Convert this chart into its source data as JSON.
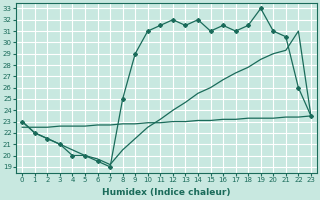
{
  "xlabel": "Humidex (Indice chaleur)",
  "xlim": [
    -0.5,
    23.5
  ],
  "ylim": [
    18.5,
    33.5
  ],
  "xticks": [
    0,
    1,
    2,
    3,
    4,
    5,
    6,
    7,
    8,
    9,
    10,
    11,
    12,
    13,
    14,
    15,
    16,
    17,
    18,
    19,
    20,
    21,
    22,
    23
  ],
  "yticks": [
    19,
    20,
    21,
    22,
    23,
    24,
    25,
    26,
    27,
    28,
    29,
    30,
    31,
    32,
    33
  ],
  "bg_color": "#c8e8e0",
  "grid_color": "#ffffff",
  "line_color": "#1a6b5a",
  "line1_x": [
    0,
    1,
    2,
    3,
    4,
    5,
    6,
    7,
    8,
    9,
    10,
    11,
    12,
    13,
    14,
    15,
    16,
    17,
    18,
    19,
    20,
    21,
    22,
    23
  ],
  "line1_y": [
    23,
    22,
    21.5,
    21,
    20,
    20,
    19.5,
    19,
    25,
    29,
    31,
    31.5,
    32,
    31.5,
    32,
    31,
    31.5,
    31,
    31.5,
    33,
    31,
    30.5,
    26,
    23.5
  ],
  "line2_x": [
    0,
    1,
    2,
    3,
    4,
    5,
    6,
    7,
    8,
    9,
    10,
    11,
    12,
    13,
    14,
    15,
    16,
    17,
    18,
    19,
    20,
    21,
    22,
    23
  ],
  "line2_y": [
    23,
    22,
    21.5,
    21,
    20.5,
    20,
    19.7,
    19.2,
    20.5,
    21.5,
    22.5,
    23.2,
    24,
    24.7,
    25.5,
    26,
    26.7,
    27.3,
    27.8,
    28.5,
    29,
    29.3,
    31,
    23.5
  ],
  "line3_x": [
    0,
    1,
    2,
    3,
    4,
    5,
    6,
    7,
    8,
    9,
    10,
    11,
    12,
    13,
    14,
    15,
    16,
    17,
    18,
    19,
    20,
    21,
    22,
    23
  ],
  "line3_y": [
    22.5,
    22.5,
    22.5,
    22.6,
    22.6,
    22.6,
    22.7,
    22.7,
    22.8,
    22.8,
    22.9,
    22.9,
    23.0,
    23.0,
    23.1,
    23.1,
    23.2,
    23.2,
    23.3,
    23.3,
    23.3,
    23.4,
    23.4,
    23.5
  ]
}
